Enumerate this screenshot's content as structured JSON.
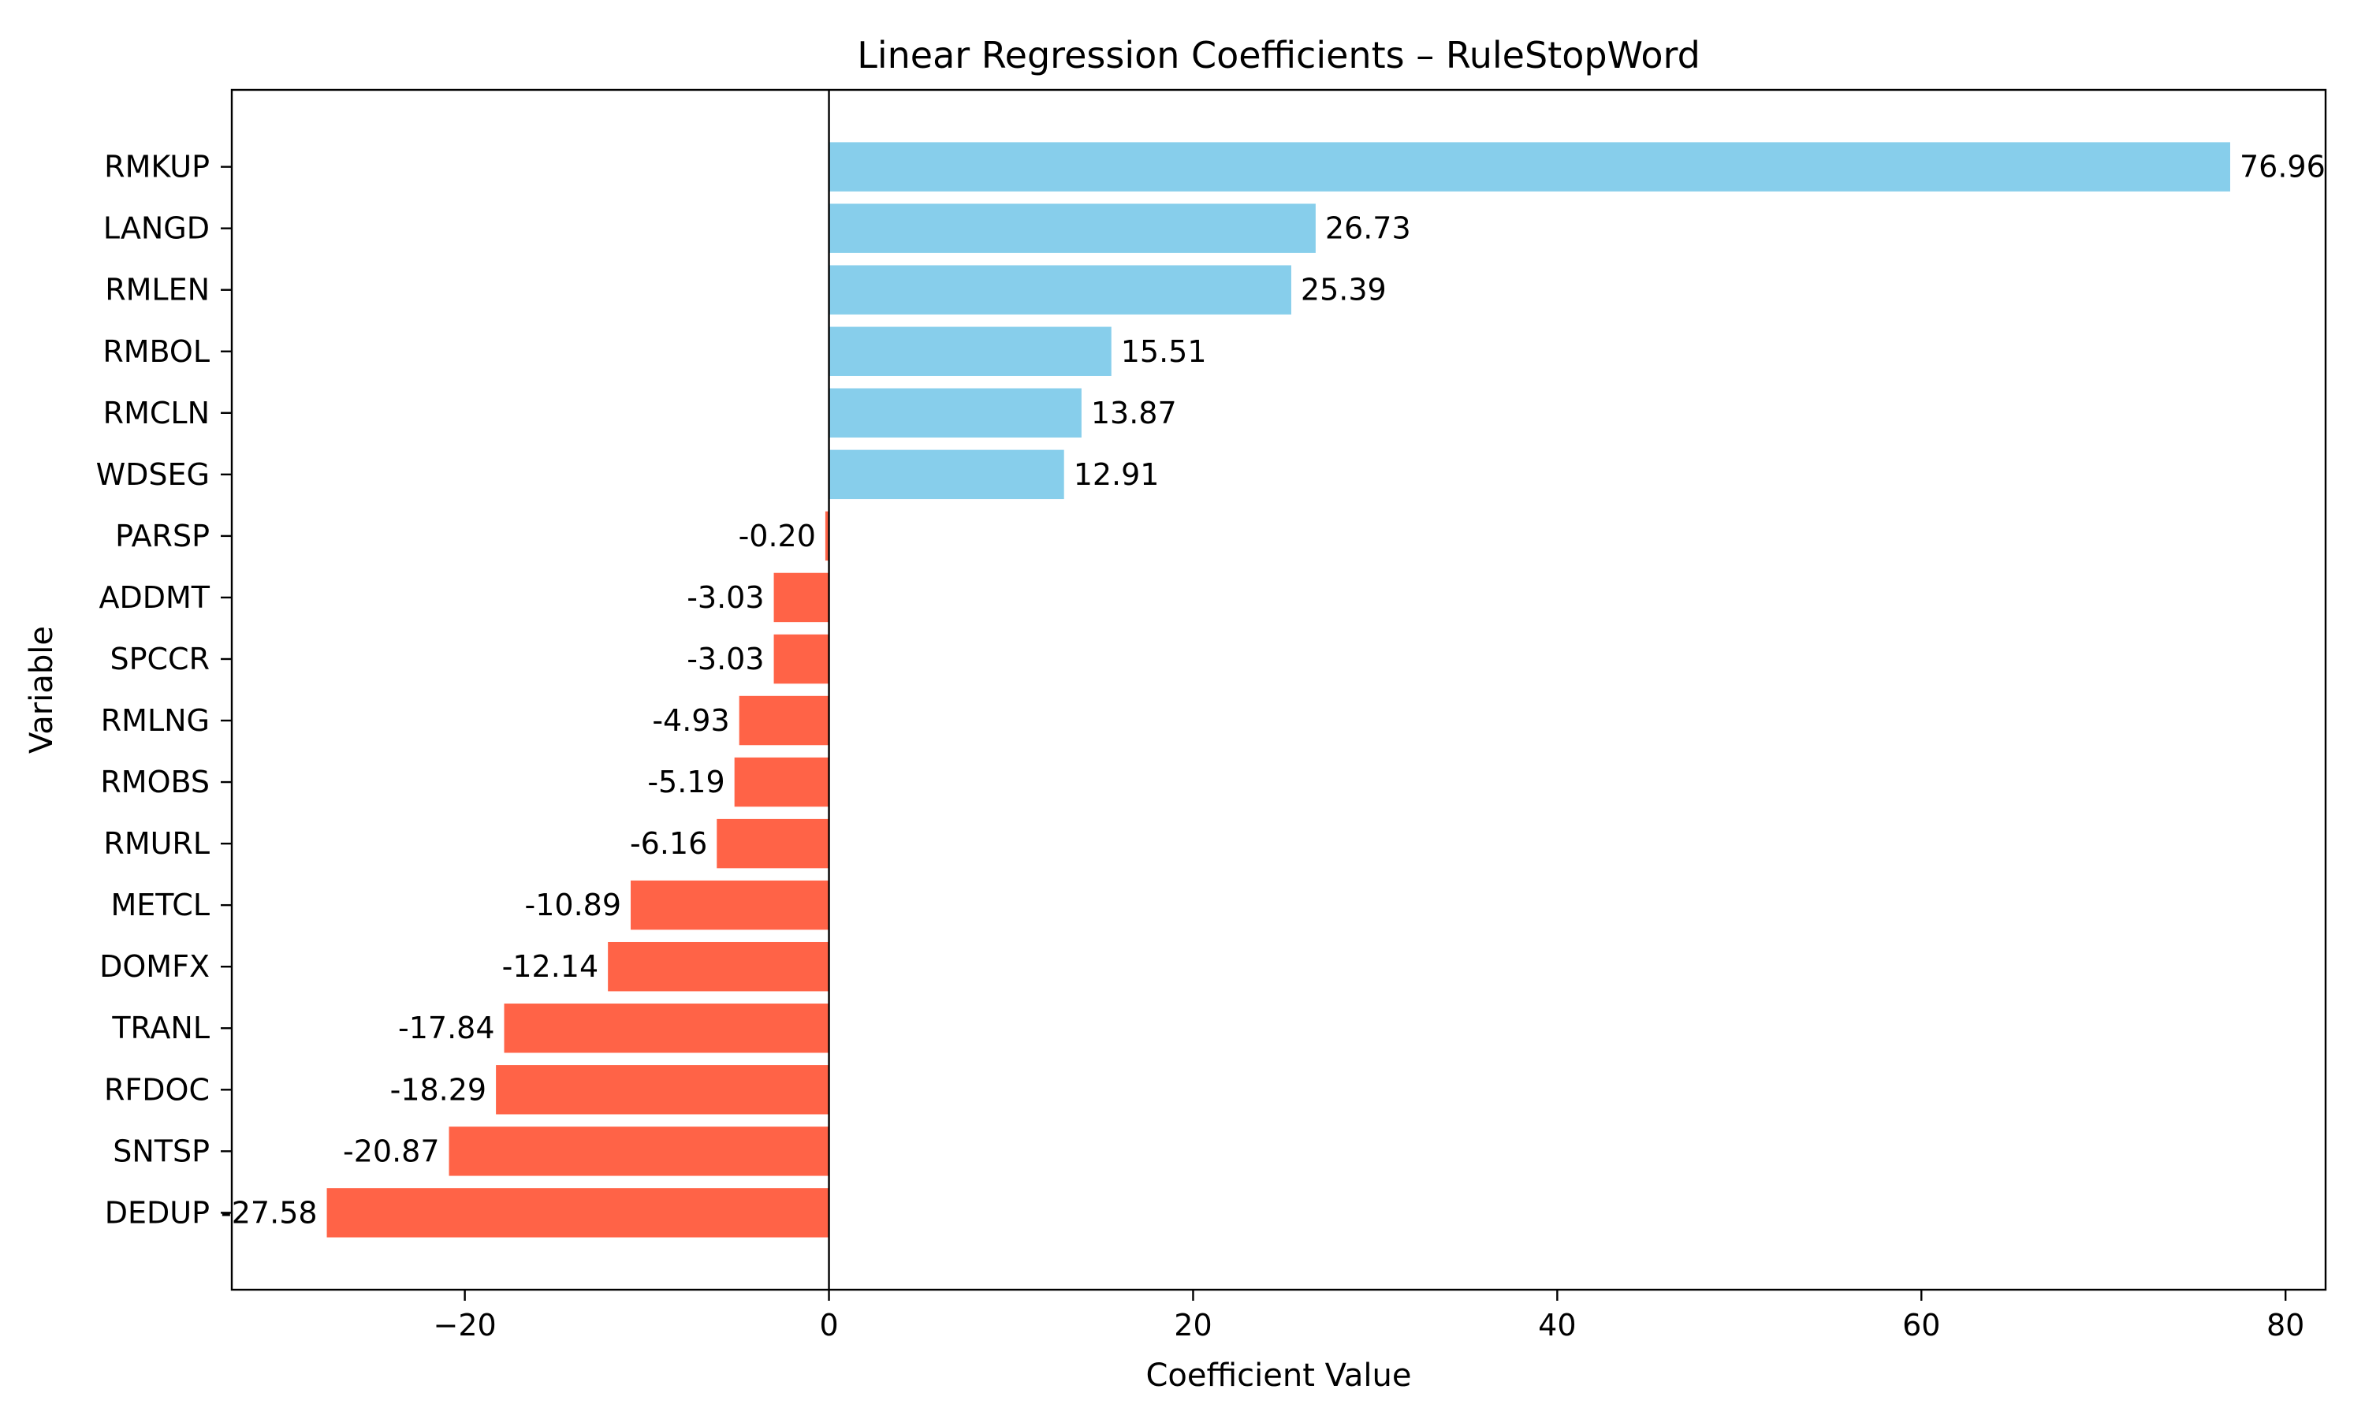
{
  "chart_data": {
    "type": "bar",
    "orientation": "horizontal",
    "title": "Linear Regression Coefficients – RuleStopWord",
    "xlabel": "Coefficient Value",
    "ylabel": "Variable",
    "xlim": [
      -32.8,
      82.2
    ],
    "xticks": [
      -20,
      0,
      20,
      40,
      60,
      80
    ],
    "xtick_labels": [
      "−20",
      "0",
      "20",
      "40",
      "60",
      "80"
    ],
    "grid": false,
    "colors": {
      "positive": "#87CEEB",
      "negative": "#FF6347"
    },
    "categories": [
      "RMKUP",
      "LANGD",
      "RMLEN",
      "RMBOL",
      "RMCLN",
      "WDSEG",
      "PARSP",
      "ADDMT",
      "SPCCR",
      "RMLNG",
      "RMOBS",
      "RMURL",
      "METCL",
      "DOMFX",
      "TRANL",
      "RFDOC",
      "SNTSP",
      "DEDUP"
    ],
    "values": [
      76.96,
      26.73,
      25.39,
      15.51,
      13.87,
      12.91,
      -0.2,
      -3.03,
      -3.03,
      -4.93,
      -5.19,
      -6.16,
      -10.89,
      -12.14,
      -17.84,
      -18.29,
      -20.87,
      -27.58
    ],
    "value_labels": [
      "76.96",
      "26.73",
      "25.39",
      "15.51",
      "13.87",
      "12.91",
      "-0.20",
      "-3.03",
      "-3.03",
      "-4.93",
      "-5.19",
      "-6.16",
      "-10.89",
      "-12.14",
      "-17.84",
      "-18.29",
      "-20.87",
      "-27.58"
    ]
  }
}
